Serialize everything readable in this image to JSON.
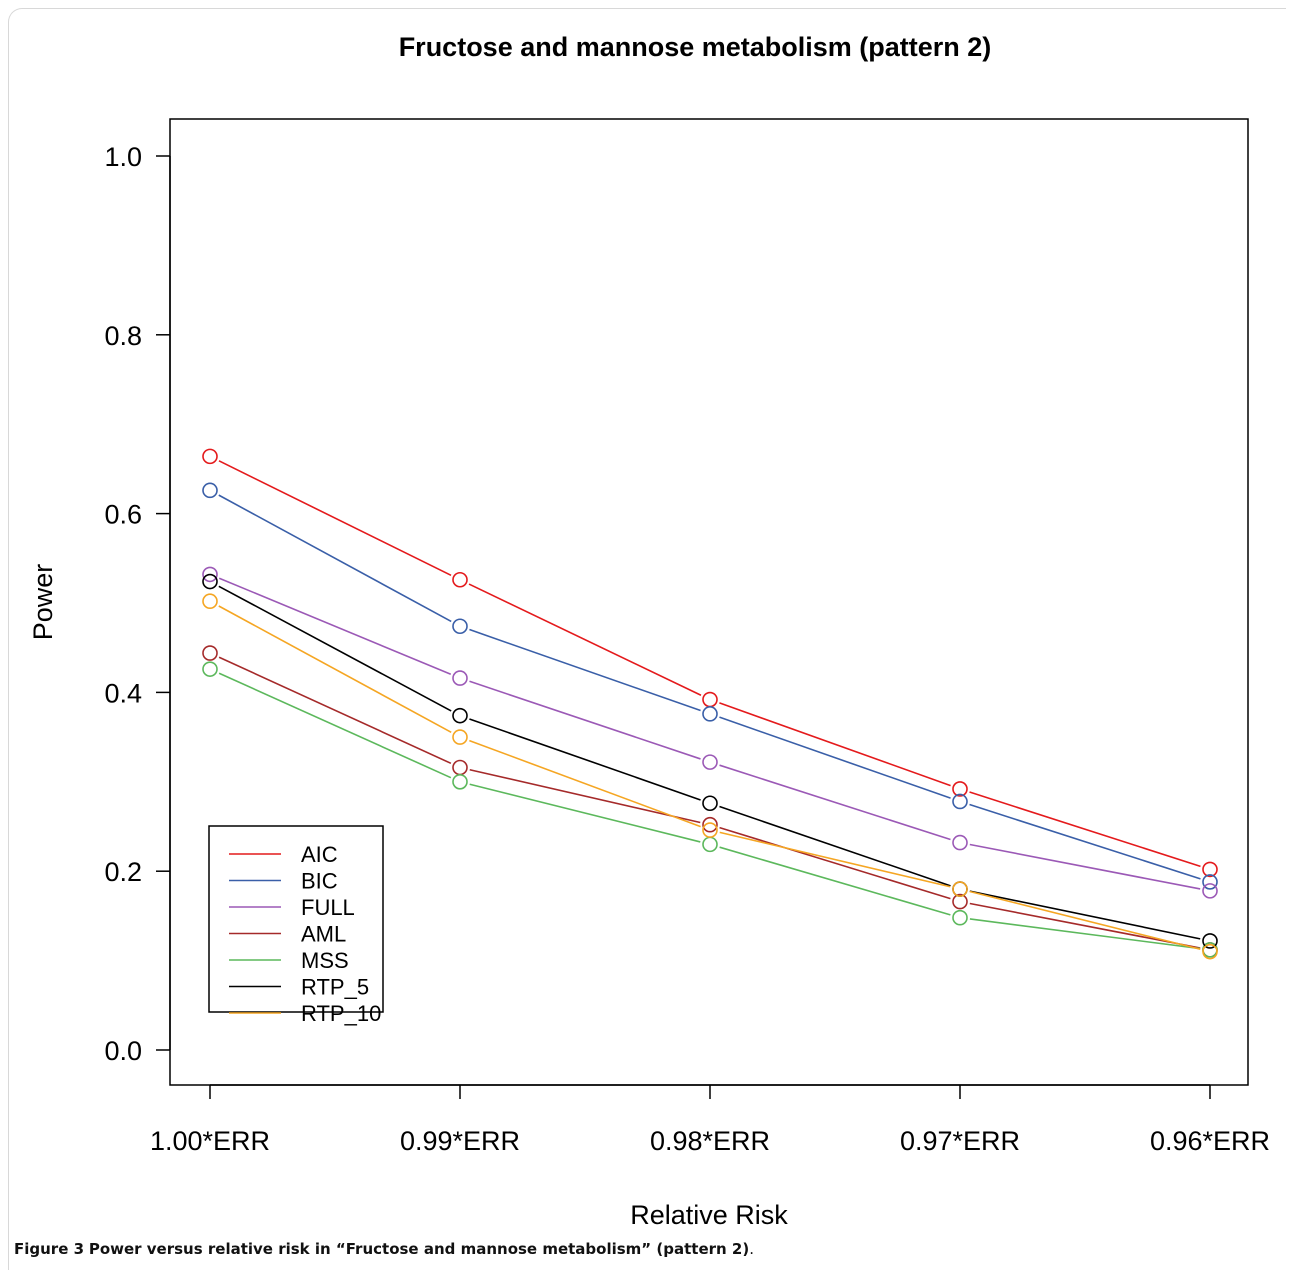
{
  "chart_data": {
    "type": "line",
    "title": "Fructose and mannose metabolism (pattern 2)",
    "xlabel": "Relative Risk",
    "ylabel": "Power",
    "categories": [
      "1.00*ERR",
      "0.99*ERR",
      "0.98*ERR",
      "0.97*ERR",
      "0.96*ERR"
    ],
    "ylim": [
      0,
      1
    ],
    "yticks": [
      "0.0",
      "0.2",
      "0.4",
      "0.6",
      "0.8",
      "1.0"
    ],
    "grid": false,
    "legend_position": "bottom-left",
    "series": [
      {
        "name": "AIC",
        "color": "#e41a1c",
        "values": [
          0.664,
          0.526,
          0.392,
          0.292,
          0.202
        ]
      },
      {
        "name": "BIC",
        "color": "#3a5fa8",
        "values": [
          0.626,
          0.474,
          0.376,
          0.278,
          0.188
        ]
      },
      {
        "name": "FULL",
        "color": "#9b59b6",
        "values": [
          0.532,
          0.416,
          0.322,
          0.232,
          0.178
        ]
      },
      {
        "name": "AML",
        "color": "#a52a2a",
        "values": [
          0.444,
          0.316,
          0.252,
          0.166,
          0.112
        ]
      },
      {
        "name": "MSS",
        "color": "#5cb85c",
        "values": [
          0.426,
          0.3,
          0.23,
          0.148,
          0.112
        ]
      },
      {
        "name": "RTP_5",
        "color": "#000000",
        "values": [
          0.524,
          0.374,
          0.276,
          0.18,
          0.122
        ]
      },
      {
        "name": "RTP_10",
        "color": "#f5a623",
        "values": [
          0.502,
          0.35,
          0.246,
          0.18,
          0.11
        ]
      }
    ]
  },
  "caption": {
    "label": "Figure 3",
    "text": "Power versus relative risk in “Fructose and mannose metabolism” (pattern 2)",
    "end": "."
  }
}
